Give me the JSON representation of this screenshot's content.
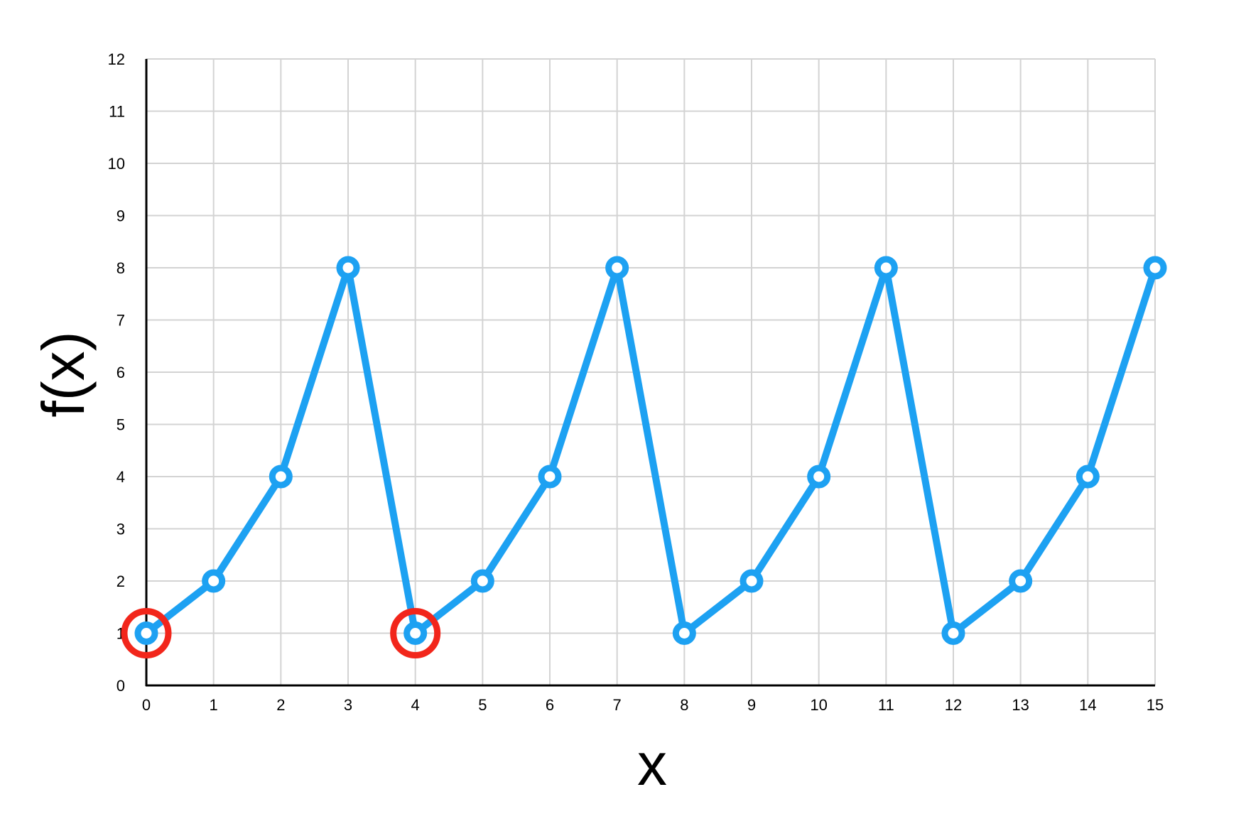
{
  "chart_data": {
    "type": "line",
    "title": "",
    "xlabel": "x",
    "ylabel": "f(x)",
    "xlim": [
      0,
      15
    ],
    "ylim": [
      0,
      12
    ],
    "x_ticks": [
      "0",
      "1",
      "2",
      "3",
      "4",
      "5",
      "6",
      "7",
      "8",
      "9",
      "10",
      "11",
      "12",
      "13",
      "14",
      "15"
    ],
    "y_ticks": [
      "0",
      "1",
      "2",
      "3",
      "4",
      "5",
      "6",
      "7",
      "8",
      "9",
      "10",
      "11",
      "12"
    ],
    "grid": true,
    "legend": "none",
    "series": [
      {
        "x": [
          0,
          1,
          2,
          3,
          4,
          5,
          6,
          7,
          8,
          9,
          10,
          11,
          12,
          13,
          14,
          15
        ],
        "values": [
          1,
          2,
          4,
          8,
          1,
          2,
          4,
          8,
          1,
          2,
          4,
          8,
          1,
          2,
          4,
          8
        ],
        "color": "#1da1f2"
      }
    ],
    "highlighted_points": [
      {
        "x": 0,
        "y": 1
      },
      {
        "x": 4,
        "y": 1
      }
    ],
    "highlight_color": "#f2261b"
  }
}
